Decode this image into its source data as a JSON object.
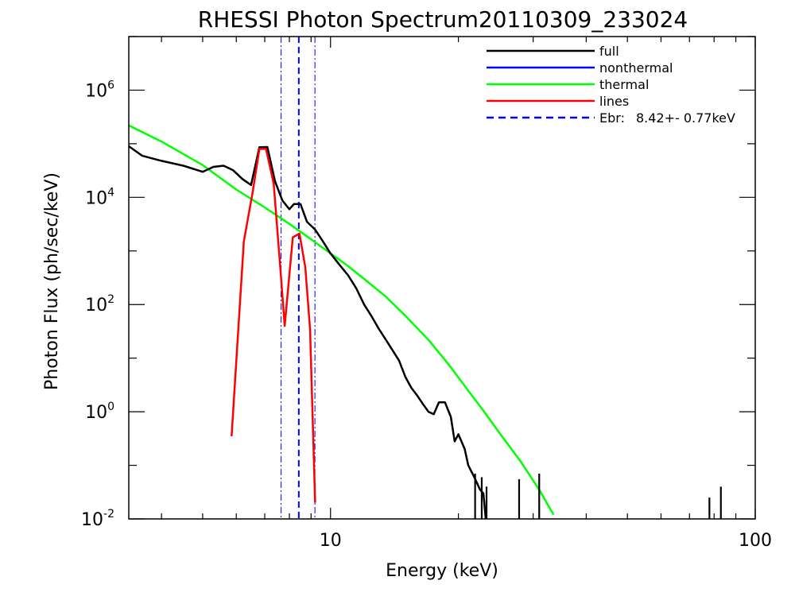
{
  "chart_data": {
    "type": "line",
    "title": "RHESSI Photon Spectrum20110309_233024",
    "xlabel": "Energy (keV)",
    "ylabel": "Photon Flux (ph/sec/keV)",
    "xscale": "log",
    "yscale": "log",
    "xlim": [
      3.35,
      100
    ],
    "ylim": [
      0.01,
      10000000
    ],
    "x_ticks": [
      {
        "value": 10,
        "label": "10"
      },
      {
        "value": 100,
        "label": "100"
      }
    ],
    "y_ticks": [
      {
        "value": 0.01,
        "base": "10",
        "exp": "-2"
      },
      {
        "value": 1,
        "base": "10",
        "exp": "0"
      },
      {
        "value": 100,
        "base": "10",
        "exp": "2"
      },
      {
        "value": 10000,
        "base": "10",
        "exp": "4"
      },
      {
        "value": 1000000,
        "base": "10",
        "exp": "6"
      }
    ],
    "legend_position": "top-right",
    "series": [
      {
        "name": "full",
        "color": "#000000",
        "points": [
          [
            3.35,
            90000
          ],
          [
            3.6,
            60000
          ],
          [
            4.0,
            48000
          ],
          [
            4.5,
            39000
          ],
          [
            5.0,
            30000
          ],
          [
            5.3,
            37000
          ],
          [
            5.6,
            39000
          ],
          [
            5.9,
            32000
          ],
          [
            6.2,
            22000
          ],
          [
            6.5,
            17000
          ],
          [
            6.8,
            86000
          ],
          [
            7.1,
            87000
          ],
          [
            7.4,
            20000
          ],
          [
            7.7,
            8800
          ],
          [
            8.0,
            6000
          ],
          [
            8.2,
            7500
          ],
          [
            8.5,
            7500
          ],
          [
            8.8,
            3500
          ],
          [
            9.2,
            2500
          ],
          [
            9.6,
            1500
          ],
          [
            10.0,
            900
          ],
          [
            10.5,
            550
          ],
          [
            11.0,
            350
          ],
          [
            11.5,
            200
          ],
          [
            12.0,
            100
          ],
          [
            12.5,
            60
          ],
          [
            13.0,
            35
          ],
          [
            13.5,
            22
          ],
          [
            14.0,
            14
          ],
          [
            14.5,
            9
          ],
          [
            15.0,
            4.5
          ],
          [
            15.5,
            2.8
          ],
          [
            16.0,
            2.0
          ],
          [
            16.5,
            1.4
          ],
          [
            17.0,
            1.0
          ],
          [
            17.5,
            0.9
          ],
          [
            18.0,
            1.5
          ],
          [
            18.6,
            1.5
          ],
          [
            19.2,
            0.8
          ],
          [
            19.6,
            0.28
          ],
          [
            20.0,
            0.38
          ],
          [
            20.7,
            0.2
          ],
          [
            21.1,
            0.1
          ],
          [
            21.8,
            0.06
          ],
          [
            22.5,
            0.035
          ],
          [
            22.9,
            0.03
          ],
          [
            23.2,
            0.01
          ]
        ]
      },
      {
        "name": "nonthermal",
        "color": "#0000ff",
        "points": []
      },
      {
        "name": "thermal",
        "color": "#00ff00",
        "points": [
          [
            3.35,
            220000
          ],
          [
            4.0,
            110000
          ],
          [
            5.0,
            40000
          ],
          [
            6.0,
            14000
          ],
          [
            7.0,
            6500
          ],
          [
            8.0,
            3200
          ],
          [
            9.0,
            1650
          ],
          [
            10.0,
            900
          ],
          [
            11.0,
            520
          ],
          [
            12.0,
            300
          ],
          [
            13.5,
            140
          ],
          [
            15.0,
            62
          ],
          [
            17.0,
            22
          ],
          [
            19.0,
            7.5
          ],
          [
            21.0,
            2.6
          ],
          [
            23.0,
            1.0
          ],
          [
            25.0,
            0.4
          ],
          [
            28.0,
            0.12
          ],
          [
            31.0,
            0.035
          ],
          [
            33.5,
            0.012
          ]
        ]
      },
      {
        "name": "lines",
        "color": "#ff0000",
        "points": [
          [
            5.85,
            0.35
          ],
          [
            6.25,
            1500
          ],
          [
            6.55,
            12000
          ],
          [
            6.8,
            80000
          ],
          [
            7.05,
            80000
          ],
          [
            7.35,
            18000
          ],
          [
            7.6,
            600
          ],
          [
            7.8,
            40
          ],
          [
            8.15,
            1800
          ],
          [
            8.45,
            2100
          ],
          [
            8.72,
            500
          ],
          [
            8.95,
            35
          ],
          [
            9.2,
            0.02
          ]
        ]
      }
    ],
    "fluctuations": [
      {
        "x": 21.9,
        "y_top": 0.07
      },
      {
        "x": 22.7,
        "y_top": 0.06
      },
      {
        "x": 23.3,
        "y_top": 0.04
      },
      {
        "x": 27.8,
        "y_top": 0.055
      },
      {
        "x": 31.0,
        "y_top": 0.07
      },
      {
        "x": 78.0,
        "y_top": 0.025
      },
      {
        "x": 83.0,
        "y_top": 0.04
      }
    ],
    "break_energy": {
      "label": "Ebr:",
      "value_text": "8.42+- 0.77keV",
      "value": 8.42,
      "error": 0.77,
      "color": "#0000ff"
    }
  }
}
